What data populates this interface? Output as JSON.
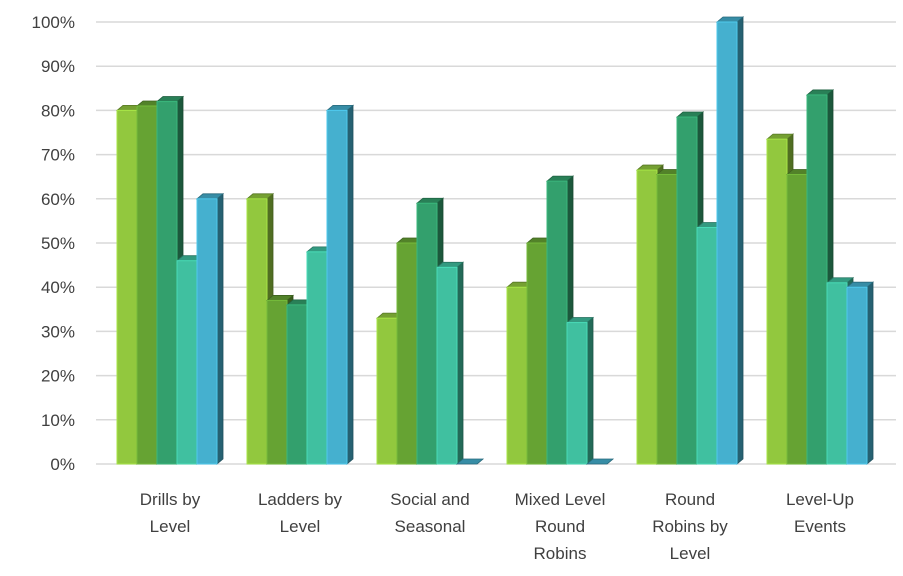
{
  "chart_data": {
    "type": "bar",
    "title": "",
    "xlabel": "",
    "ylabel": "",
    "ylim": [
      0,
      100
    ],
    "y_ticks": [
      "0%",
      "10%",
      "20%",
      "30%",
      "40%",
      "50%",
      "60%",
      "70%",
      "80%",
      "90%",
      "100%"
    ],
    "grid": true,
    "three_d": true,
    "categories": [
      [
        "Drills by",
        "Level"
      ],
      [
        "Ladders by",
        "Level"
      ],
      [
        "Social and",
        "Seasonal"
      ],
      [
        "Mixed Level",
        "Round",
        "Robins"
      ],
      [
        "Round",
        "Robins by",
        "Level"
      ],
      [
        "Level-Up",
        "Events"
      ]
    ],
    "series": [
      {
        "color": "#92c83e",
        "values": [
          80,
          60,
          33,
          40,
          66.5,
          73.5
        ]
      },
      {
        "color": "#66a333",
        "values": [
          81,
          37,
          50,
          50,
          65.5,
          65.5
        ]
      },
      {
        "color": "#33a06d",
        "values": [
          82,
          36,
          59,
          64,
          78.5,
          83.5
        ]
      },
      {
        "color": "#40c0a0",
        "values": [
          46,
          48,
          44.5,
          32,
          53.5,
          41
        ]
      },
      {
        "color": "#45b0cf",
        "values": [
          60,
          80,
          0,
          0,
          100,
          40
        ]
      }
    ]
  }
}
